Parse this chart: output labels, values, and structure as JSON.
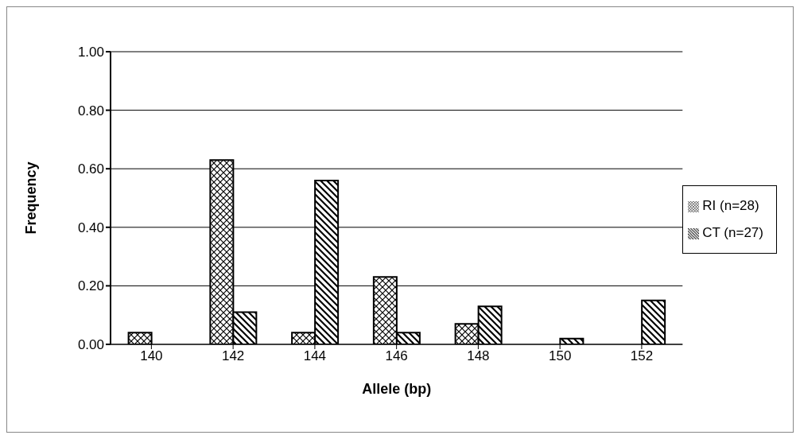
{
  "chart_data": {
    "type": "bar",
    "xlabel": "Allele (bp)",
    "ylabel": "Frequency",
    "categories": [
      "140",
      "142",
      "144",
      "146",
      "148",
      "150",
      "152"
    ],
    "series": [
      {
        "name": "RI (n=28)",
        "color": "#000000",
        "values": [
          0.04,
          0.63,
          0.04,
          0.23,
          0.07,
          0,
          0
        ]
      },
      {
        "name": "CT (n=27)",
        "color": "#000000",
        "values": [
          0,
          0.11,
          0.56,
          0.04,
          0.13,
          0.02,
          0.15
        ]
      }
    ],
    "ylim": [
      0,
      1
    ],
    "yticks": [
      {
        "value": 0,
        "label": "0.00"
      },
      {
        "value": 0.2,
        "label": "0.20"
      },
      {
        "value": 0.4,
        "label": "0.40"
      },
      {
        "value": 0.6,
        "label": "0.60"
      },
      {
        "value": 0.8,
        "label": "0.80"
      },
      {
        "value": 1,
        "label": "1.00"
      }
    ],
    "grid": "y",
    "legend": "right"
  }
}
